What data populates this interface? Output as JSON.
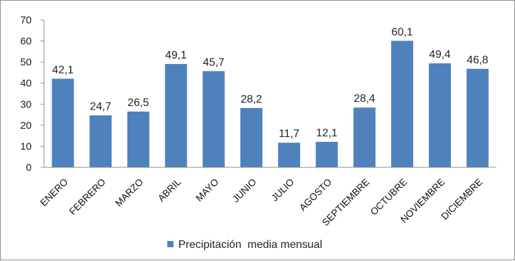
{
  "chart_data": {
    "type": "bar",
    "categories": [
      "ENERO",
      "FEBRERO",
      "MARZO",
      "ABRIL",
      "MAYO",
      "JUNIO",
      "JULIO",
      "AGOSTO",
      "SEPTIEMBRE",
      "OCTUBRE",
      "NOVIEMBRE",
      "DICIEMBRE"
    ],
    "series": [
      {
        "name": "Precipitación  media mensual",
        "values": [
          42.1,
          24.7,
          26.5,
          49.1,
          45.7,
          28.2,
          11.7,
          12.1,
          28.4,
          60.1,
          49.4,
          46.8
        ],
        "value_labels": [
          "42,1",
          "24,7",
          "26,5",
          "49,1",
          "45,7",
          "28,2",
          "11,7",
          "12,1",
          "28,4",
          "60,1",
          "49,4",
          "46,8"
        ]
      }
    ],
    "yticks": [
      0,
      10,
      20,
      30,
      40,
      50,
      60,
      70
    ],
    "ylim": [
      0,
      70
    ],
    "grid": false,
    "legend_position": "bottom",
    "colors": {
      "bar": "#4f81bd",
      "axis": "#8c8c8c"
    }
  }
}
